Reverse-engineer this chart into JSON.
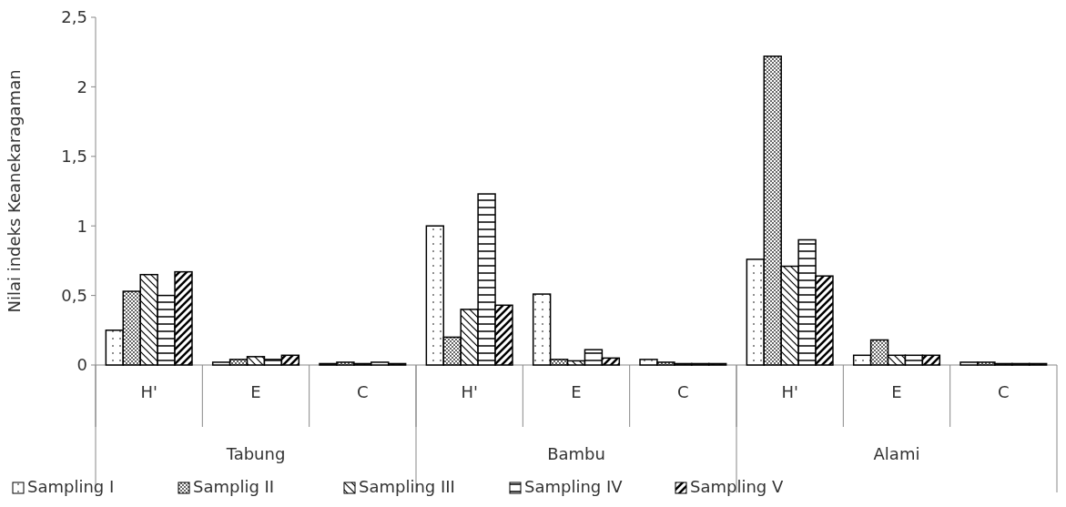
{
  "chart_data": {
    "type": "bar",
    "ylabel": "Nilai indeks Keanekaragaman",
    "categories": [
      "H'",
      "E",
      "C",
      "H'",
      "E",
      "C",
      "H'",
      "E",
      "C"
    ],
    "annotations": [
      "Tabung",
      "Bambu",
      "Alami"
    ],
    "series": [
      {
        "name": "Sampling I",
        "color": "#000000",
        "values": [
          0.25,
          0.02,
          0.01,
          1.0,
          0.51,
          0.04,
          0.76,
          0.07,
          0.02
        ]
      },
      {
        "name": "Samplig II",
        "color": "#000000",
        "values": [
          0.53,
          0.04,
          0.02,
          0.2,
          0.04,
          0.02,
          2.22,
          0.18,
          0.02
        ]
      },
      {
        "name": "Sampling III",
        "color": "#000000",
        "values": [
          0.65,
          0.06,
          0.01,
          0.4,
          0.03,
          0.01,
          0.71,
          0.07,
          0.01
        ]
      },
      {
        "name": "Sampling IV",
        "color": "#000000",
        "values": [
          0.5,
          0.04,
          0.02,
          1.23,
          0.11,
          0.01,
          0.9,
          0.07,
          0.01
        ]
      },
      {
        "name": "Sampling V",
        "color": "#000000",
        "values": [
          0.67,
          0.07,
          0.01,
          0.43,
          0.05,
          0.01,
          0.64,
          0.07,
          0.01
        ]
      }
    ],
    "ylim": [
      0,
      2.5
    ],
    "yticks": [
      0,
      {
        "value": 0.5,
        "label": "0,5"
      },
      1,
      {
        "value": 1.5,
        "label": "1,5"
      },
      2,
      {
        "value": 2.5,
        "label": "2,5"
      }
    ],
    "grid": false,
    "legend": "bottom"
  }
}
